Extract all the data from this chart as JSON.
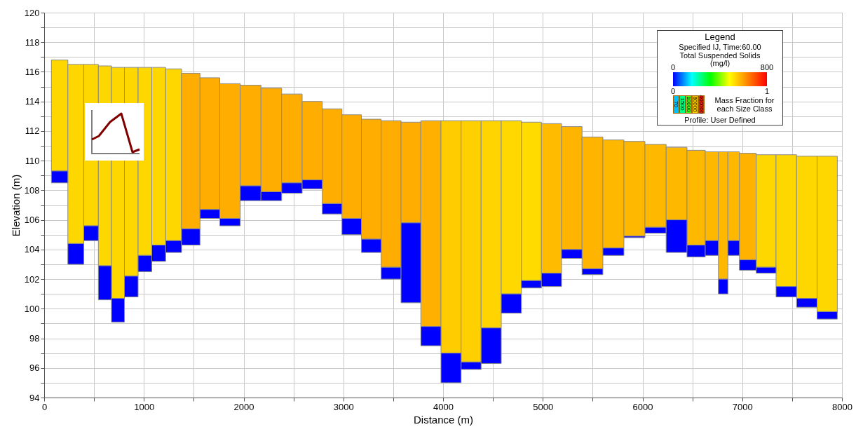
{
  "chart_data": {
    "type": "bar",
    "xlabel": "Distance (m)",
    "ylabel": "Elevation (m)",
    "legend_title": "Legend",
    "clabel": "Total Suspended Solids",
    "annotations": [
      "Specified IJ, Time:60.00",
      "(mg/l)",
      "0",
      "800",
      "0",
      "1",
      "70",
      "1500",
      "10000",
      "80000",
      "400000",
      "Mass Fraction for each Size Class",
      "Profile: User Defined"
    ],
    "x": [
      155,
      320,
      475,
      612,
      738,
      872,
      1012,
      1146,
      1290,
      1466,
      1659,
      1863,
      2070,
      2278,
      2485,
      2689,
      2889,
      3083,
      3279,
      3480,
      3677,
      3877,
      4081,
      4281,
      4482,
      4685,
      4886,
      5086,
      5290,
      5497,
      5708,
      5919,
      6130,
      6344,
      6548,
      6710,
      6812,
      6900,
      7044,
      7237,
      7441,
      7649,
      7852
    ],
    "series": [
      {
        "colors": [
          "#ffd700",
          "#ffd700",
          "#ffd700",
          "#ffd700",
          "#ffd700",
          "#ffd700",
          "#ffd700",
          "#ffd700",
          "#ffd700",
          "#ffad00",
          "#ffad00",
          "#ffad00",
          "#ffad00",
          "#ffad00",
          "#ffad00",
          "#ffad00",
          "#ffad00",
          "#ffad00",
          "#ffad00",
          "#ffad00",
          "#ffad00",
          "#ffb000",
          "#ffcc00",
          "#ffd000",
          "#ffd400",
          "#ffd800",
          "#ffdb00",
          "#ffbb00",
          "#ffb400",
          "#ffb400",
          "#ffb800",
          "#ffb800",
          "#ffb800",
          "#ffb800",
          "#ffb800",
          "#ffb800",
          "#ffb800",
          "#ffb800",
          "#ffb300",
          "#ffd700",
          "#ffd700",
          "#ffd700",
          "#ffd700"
        ],
        "base": [
          109.3,
          104.4,
          105.6,
          102.9,
          100.7,
          102.2,
          103.6,
          104.3,
          104.6,
          105.4,
          106.7,
          106.1,
          108.3,
          107.9,
          108.5,
          108.7,
          107.1,
          106.1,
          104.7,
          102.8,
          105.8,
          98.8,
          97.0,
          96.4,
          98.7,
          101.0,
          101.9,
          102.4,
          104.0,
          102.7,
          104.1,
          104.9,
          105.5,
          106.0,
          104.3,
          104.6,
          102.0,
          104.6,
          103.3,
          102.8,
          101.5,
          100.7,
          99.8
        ],
        "values": [
          7.5,
          12.1,
          10.9,
          13.5,
          15.6,
          14.1,
          12.7,
          12.0,
          11.6,
          10.5,
          8.9,
          9.1,
          6.8,
          7.0,
          6.0,
          5.3,
          6.4,
          7.0,
          8.1,
          9.9,
          6.8,
          13.9,
          15.7,
          16.3,
          14.0,
          11.7,
          10.7,
          10.1,
          8.3,
          8.9,
          7.3,
          6.4,
          5.6,
          4.9,
          6.4,
          6.0,
          8.6,
          6.0,
          7.2,
          7.6,
          8.9,
          9.6,
          10.5
        ]
      },
      {
        "color": "#0000ff",
        "base": [
          108.5,
          103.0,
          104.6,
          100.6,
          99.1,
          100.8,
          102.5,
          103.2,
          103.8,
          104.3,
          106.1,
          105.6,
          107.3,
          107.3,
          107.8,
          108.1,
          106.4,
          105.0,
          103.8,
          102.0,
          100.4,
          97.5,
          95.0,
          95.9,
          96.3,
          99.7,
          101.4,
          101.5,
          103.4,
          102.3,
          103.6,
          104.8,
          105.1,
          103.8,
          103.5,
          103.6,
          101.0,
          103.6,
          102.6,
          102.4,
          100.8,
          100.1,
          99.3
        ],
        "values": [
          0.8,
          1.4,
          1.0,
          2.3,
          1.6,
          1.4,
          1.1,
          1.1,
          0.8,
          1.1,
          0.6,
          0.5,
          1.0,
          0.6,
          0.7,
          0.6,
          0.7,
          1.1,
          0.9,
          0.8,
          5.4,
          1.3,
          2.0,
          0.5,
          2.4,
          1.3,
          0.5,
          0.9,
          0.6,
          0.4,
          0.5,
          0.1,
          0.4,
          2.2,
          0.8,
          1.0,
          1.0,
          1.0,
          0.7,
          0.4,
          0.7,
          0.6,
          0.5
        ]
      }
    ],
    "xlim": [
      0,
      8000
    ],
    "ylim": [
      94,
      120
    ],
    "xticks": [
      0,
      {
        "value": 500,
        "label": null
      },
      1000,
      {
        "value": 1500,
        "label": null
      },
      2000,
      {
        "value": 2500,
        "label": null
      },
      3000,
      {
        "value": 3500,
        "label": null
      },
      4000,
      {
        "value": 4500,
        "label": null
      },
      5000,
      {
        "value": 5500,
        "label": null
      },
      6000,
      {
        "value": 6500,
        "label": null
      },
      7000,
      {
        "value": 7500,
        "label": null
      },
      8000
    ],
    "yticks": [
      94,
      {
        "value": 95,
        "label": null
      },
      96,
      {
        "value": 97,
        "label": null
      },
      98,
      {
        "value": 99,
        "label": null
      },
      100,
      {
        "value": 101,
        "label": null
      },
      102,
      {
        "value": 103,
        "label": null
      },
      104,
      {
        "value": 105,
        "label": null
      },
      106,
      {
        "value": 107,
        "label": null
      },
      108,
      {
        "value": 109,
        "label": null
      },
      110,
      {
        "value": 111,
        "label": null
      },
      112,
      {
        "value": 113,
        "label": null
      },
      114,
      {
        "value": 115,
        "label": null
      },
      116,
      {
        "value": 117,
        "label": null
      },
      118,
      {
        "value": 119,
        "label": null
      },
      120
    ],
    "grid": true
  }
}
